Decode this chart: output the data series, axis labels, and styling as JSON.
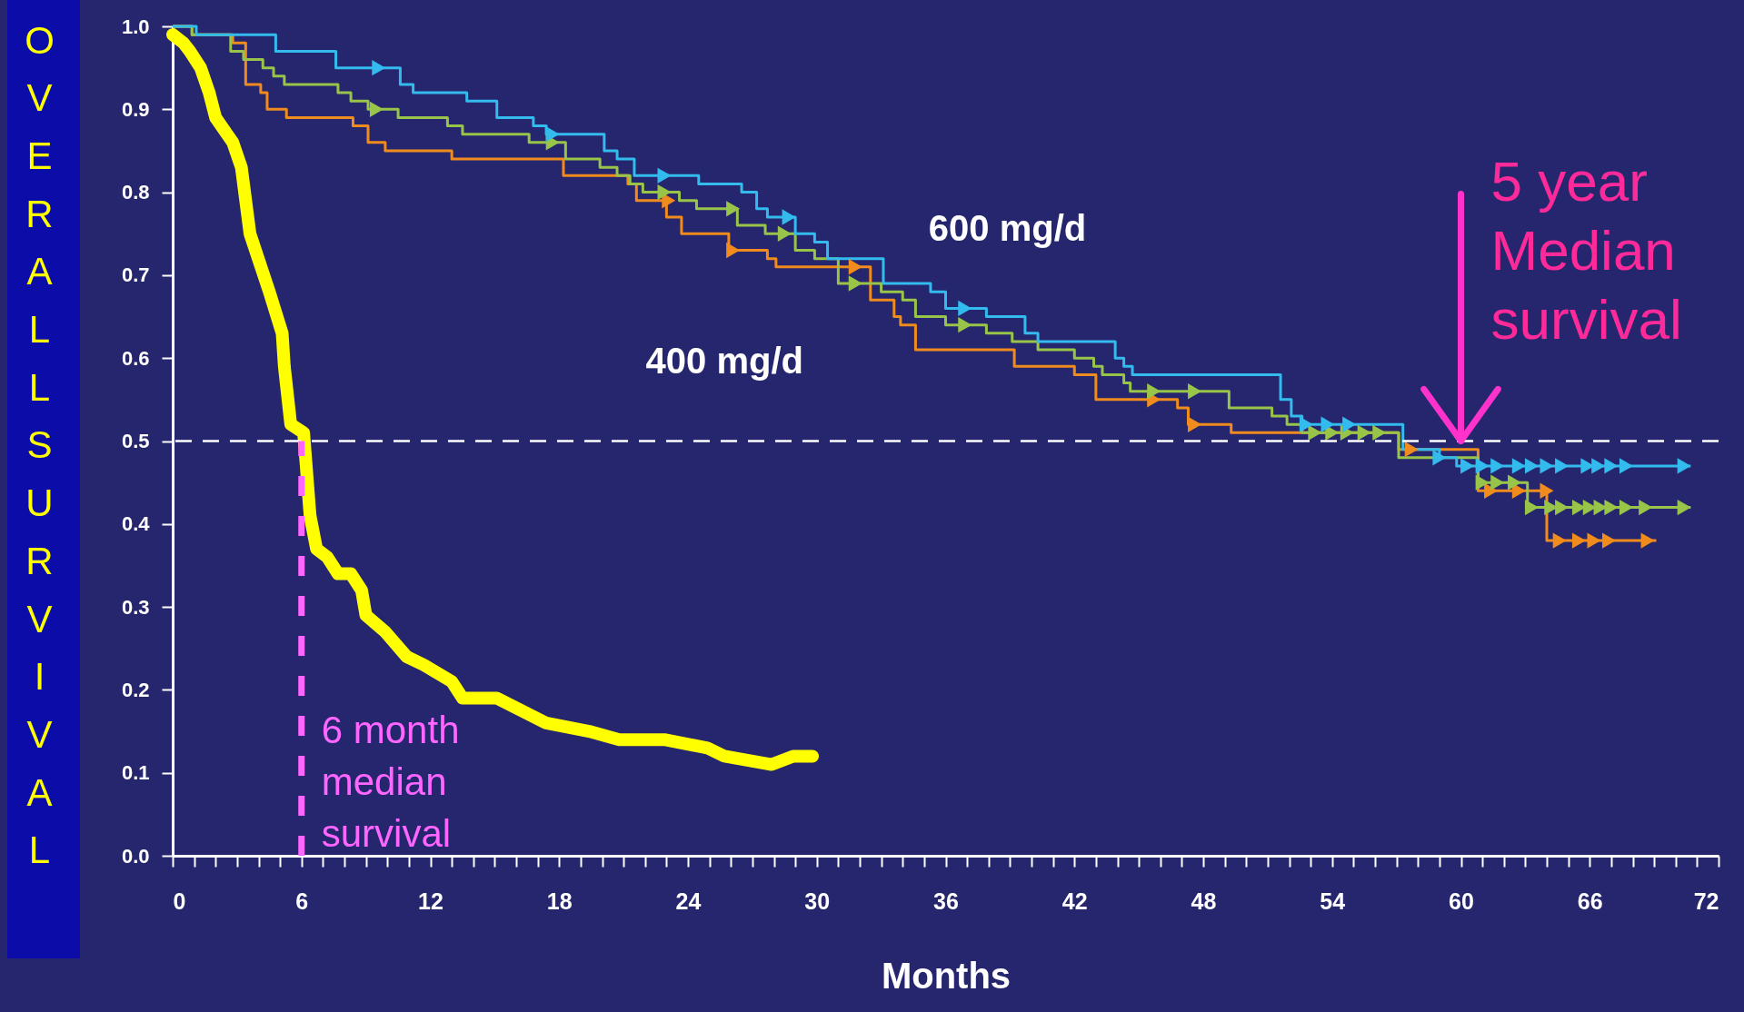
{
  "chart_data": {
    "type": "step",
    "xlabel": "Months",
    "ylabel": "OVERALL SURVIVAL",
    "xlim": [
      0,
      72
    ],
    "ylim": [
      0,
      1.0
    ],
    "xticks": [
      0,
      {
        "value": 1,
        "label": null
      },
      {
        "value": 2,
        "label": null
      },
      {
        "value": 3,
        "label": null
      },
      {
        "value": 4,
        "label": null
      },
      {
        "value": 5,
        "label": null
      },
      6,
      {
        "value": 7,
        "label": null
      },
      {
        "value": 8,
        "label": null
      },
      {
        "value": 9,
        "label": null
      },
      {
        "value": 10,
        "label": null
      },
      {
        "value": 11,
        "label": null
      },
      12,
      {
        "value": 13,
        "label": null
      },
      {
        "value": 14,
        "label": null
      },
      {
        "value": 15,
        "label": null
      },
      {
        "value": 16,
        "label": null
      },
      {
        "value": 17,
        "label": null
      },
      18,
      {
        "value": 19,
        "label": null
      },
      {
        "value": 20,
        "label": null
      },
      {
        "value": 21,
        "label": null
      },
      {
        "value": 22,
        "label": null
      },
      {
        "value": 23,
        "label": null
      },
      24,
      {
        "value": 25,
        "label": null
      },
      {
        "value": 26,
        "label": null
      },
      {
        "value": 27,
        "label": null
      },
      {
        "value": 28,
        "label": null
      },
      {
        "value": 29,
        "label": null
      },
      30,
      {
        "value": 31,
        "label": null
      },
      {
        "value": 32,
        "label": null
      },
      {
        "value": 33,
        "label": null
      },
      {
        "value": 34,
        "label": null
      },
      {
        "value": 35,
        "label": null
      },
      36,
      {
        "value": 37,
        "label": null
      },
      {
        "value": 38,
        "label": null
      },
      {
        "value": 39,
        "label": null
      },
      {
        "value": 40,
        "label": null
      },
      {
        "value": 41,
        "label": null
      },
      42,
      {
        "value": 43,
        "label": null
      },
      {
        "value": 44,
        "label": null
      },
      {
        "value": 45,
        "label": null
      },
      {
        "value": 46,
        "label": null
      },
      {
        "value": 47,
        "label": null
      },
      48,
      {
        "value": 49,
        "label": null
      },
      {
        "value": 50,
        "label": null
      },
      {
        "value": 51,
        "label": null
      },
      {
        "value": 52,
        "label": null
      },
      {
        "value": 53,
        "label": null
      },
      54,
      {
        "value": 55,
        "label": null
      },
      {
        "value": 56,
        "label": null
      },
      {
        "value": 57,
        "label": null
      },
      {
        "value": 58,
        "label": null
      },
      {
        "value": 59,
        "label": null
      },
      60,
      {
        "value": 61,
        "label": null
      },
      {
        "value": 62,
        "label": null
      },
      {
        "value": 63,
        "label": null
      },
      {
        "value": 64,
        "label": null
      },
      {
        "value": 65,
        "label": null
      },
      66,
      {
        "value": 67,
        "label": null
      },
      {
        "value": 68,
        "label": null
      },
      {
        "value": 69,
        "label": null
      },
      {
        "value": 70,
        "label": null
      },
      {
        "value": 71,
        "label": null
      },
      72
    ],
    "yticks": [
      {
        "value": 0,
        "label": "0.0"
      },
      0.1,
      0.2,
      0.3,
      0.4,
      0.5,
      0.6,
      0.7,
      0.8,
      0.9,
      {
        "value": 1.0,
        "label": "1.0"
      }
    ],
    "series": [
      {
        "color": "#f08c1e",
        "x": [
          0,
          0.9,
          2.8,
          3.4,
          4.1,
          4.4,
          5.3,
          8.4,
          9.1,
          9.9,
          13.0,
          18.2,
          21.2,
          21.6,
          23.0,
          23.7,
          25.9,
          27.7,
          28.1,
          32.5,
          33.6,
          33.9,
          34.6,
          39.2,
          42.0,
          43.0,
          46.8,
          47.3,
          49.3,
          57.1,
          60.8,
          64.0,
          69.1
        ],
        "values": [
          1.0,
          0.99,
          0.98,
          0.93,
          0.92,
          0.9,
          0.89,
          0.88,
          0.86,
          0.85,
          0.84,
          0.82,
          0.81,
          0.79,
          0.77,
          0.75,
          0.73,
          0.72,
          0.71,
          0.67,
          0.65,
          0.64,
          0.61,
          0.59,
          0.58,
          0.55,
          0.54,
          0.52,
          0.51,
          0.49,
          0.44,
          0.38,
          0.38
        ]
      },
      {
        "color": "#99c44a",
        "x": [
          0,
          0.9,
          2.7,
          3.3,
          4.2,
          4.7,
          5.2,
          7.5,
          7.7,
          8.3,
          9.1,
          9.8,
          10.5,
          11.2,
          12.8,
          13.5,
          15.1,
          16.6,
          18.3,
          19.9,
          20.7,
          21.3,
          21.9,
          23.6,
          24.4,
          26.3,
          27.2,
          27.6,
          29.0,
          29.9,
          30.3,
          31.0,
          33.0,
          34.0,
          34.6,
          35.2,
          36.0,
          37.9,
          39.1,
          39.7,
          40.3,
          42.0,
          42.9,
          43.3,
          43.8,
          44.3,
          44.6,
          46.9,
          49.2,
          51.2,
          51.5,
          51.9,
          52.6,
          57.1,
          60.8,
          63.1,
          70.7
        ],
        "values": [
          1.0,
          0.99,
          0.97,
          0.96,
          0.95,
          0.94,
          0.93,
          0.93,
          0.92,
          0.91,
          0.9,
          0.9,
          0.89,
          0.89,
          0.88,
          0.87,
          0.87,
          0.86,
          0.84,
          0.83,
          0.82,
          0.81,
          0.8,
          0.79,
          0.78,
          0.76,
          0.76,
          0.75,
          0.73,
          0.72,
          0.72,
          0.69,
          0.68,
          0.67,
          0.65,
          0.65,
          0.64,
          0.63,
          0.62,
          0.62,
          0.61,
          0.6,
          0.59,
          0.58,
          0.58,
          0.57,
          0.56,
          0.56,
          0.54,
          0.53,
          0.53,
          0.52,
          0.51,
          0.48,
          0.45,
          0.42,
          0.42
        ]
      },
      {
        "color": "#33bbee",
        "x": [
          0,
          1.1,
          4.8,
          7.6,
          10.6,
          11.2,
          13.7,
          15.1,
          16.8,
          17.4,
          20.1,
          20.7,
          21.5,
          24.5,
          26.5,
          27.2,
          27.7,
          29.0,
          29.9,
          30.5,
          33.1,
          35.3,
          36.0,
          37.9,
          39.7,
          40.3,
          43.9,
          44.3,
          44.7,
          51.6,
          52.1,
          52.6,
          57.3,
          59.0,
          59.8,
          70.7
        ],
        "values": [
          1.0,
          0.99,
          0.97,
          0.95,
          0.93,
          0.92,
          0.91,
          0.89,
          0.88,
          0.87,
          0.85,
          0.84,
          0.82,
          0.81,
          0.8,
          0.78,
          0.77,
          0.75,
          0.74,
          0.72,
          0.69,
          0.68,
          0.66,
          0.65,
          0.63,
          0.62,
          0.6,
          0.59,
          0.58,
          0.55,
          0.53,
          0.52,
          0.49,
          0.48,
          0.47,
          0.47
        ]
      },
      {
        "type": "scatter",
        "marker": "triangle",
        "color": "#f08c1e",
        "x": [
          23.1,
          26.1,
          31.8,
          45.7,
          47.6,
          53.1,
          57.7,
          61.4,
          62.7,
          64.0,
          64.6,
          65.5,
          66.2,
          66.9,
          68.7
        ],
        "values": [
          0.79,
          0.73,
          0.71,
          0.55,
          0.52,
          null,
          0.49,
          0.44,
          0.44,
          0.44,
          0.38,
          0.38,
          0.38,
          0.38,
          0.38
        ]
      },
      {
        "type": "scatter",
        "marker": "triangle",
        "color": "#99c44a",
        "x": [
          9.5,
          17.7,
          22.9,
          26.1,
          28.5,
          31.8,
          36.9,
          45.7,
          47.6,
          53.2,
          54.0,
          54.7,
          55.5,
          56.2,
          61.0,
          61.7,
          62.5,
          63.3,
          64.2,
          64.7,
          65.5,
          66.0,
          66.5,
          67.0,
          67.7,
          68.6,
          70.4
        ],
        "values": [
          0.9,
          0.86,
          0.8,
          0.78,
          0.75,
          0.69,
          0.64,
          0.56,
          0.56,
          0.51,
          0.51,
          0.51,
          0.51,
          0.51,
          0.45,
          0.45,
          0.45,
          0.42,
          0.42,
          0.42,
          0.42,
          0.42,
          0.42,
          0.42,
          0.42,
          0.42,
          0.42
        ]
      },
      {
        "type": "scatter",
        "marker": "triangle",
        "color": "#33bbee",
        "x": [
          9.6,
          17.7,
          22.9,
          28.7,
          36.9,
          52.8,
          53.8,
          54.8,
          59.0,
          60.3,
          61.0,
          61.7,
          62.7,
          63.3,
          64.0,
          64.7,
          65.9,
          66.4,
          67.0,
          67.7,
          70.4
        ],
        "values": [
          0.95,
          0.87,
          0.82,
          0.77,
          0.66,
          0.52,
          0.52,
          0.52,
          0.48,
          0.47,
          0.47,
          0.47,
          0.47,
          0.47,
          0.47,
          0.47,
          0.47,
          0.47,
          0.47,
          0.47,
          0.47
        ]
      },
      {
        "type": "line",
        "color": "#ffff00",
        "x": [
          0,
          0.5,
          0.8,
          1.3,
          1.7,
          2.0,
          2.8,
          3.2,
          3.6,
          4.5,
          5.1,
          5.2,
          5.5,
          6.1,
          6.4,
          6.7,
          7.2,
          7.7,
          8.3,
          8.8,
          9.0,
          9.9,
          10.9,
          11.7,
          13.0,
          13.5,
          15.1,
          17.4,
          19.4,
          20.8,
          22.9,
          24.9,
          25.7,
          27.9,
          28.9,
          29.8
        ],
        "values": [
          0.99,
          0.98,
          0.97,
          0.95,
          0.92,
          0.89,
          0.86,
          0.83,
          0.75,
          0.68,
          0.63,
          0.59,
          0.52,
          0.51,
          0.41,
          0.37,
          0.36,
          0.34,
          0.34,
          0.32,
          0.29,
          0.27,
          0.24,
          0.23,
          0.21,
          0.19,
          0.19,
          0.16,
          0.15,
          0.14,
          0.14,
          0.13,
          0.12,
          0.11,
          0.12,
          0.12
        ]
      }
    ],
    "ref_lines": [
      {
        "axis": "y",
        "value": 0.5,
        "color": "#ffffff",
        "line_style": "dashed"
      },
      {
        "axis": "x",
        "value": 6,
        "label": "6 month\nmedian\nsurvival",
        "color": "#ff66ff",
        "line_style": "dashed"
      }
    ],
    "annotations": [
      "600 mg/d",
      "400 mg/d",
      {
        "text": "5 year\nMedian\nsurvival",
        "x": 60,
        "y": 0.5
      }
    ]
  }
}
